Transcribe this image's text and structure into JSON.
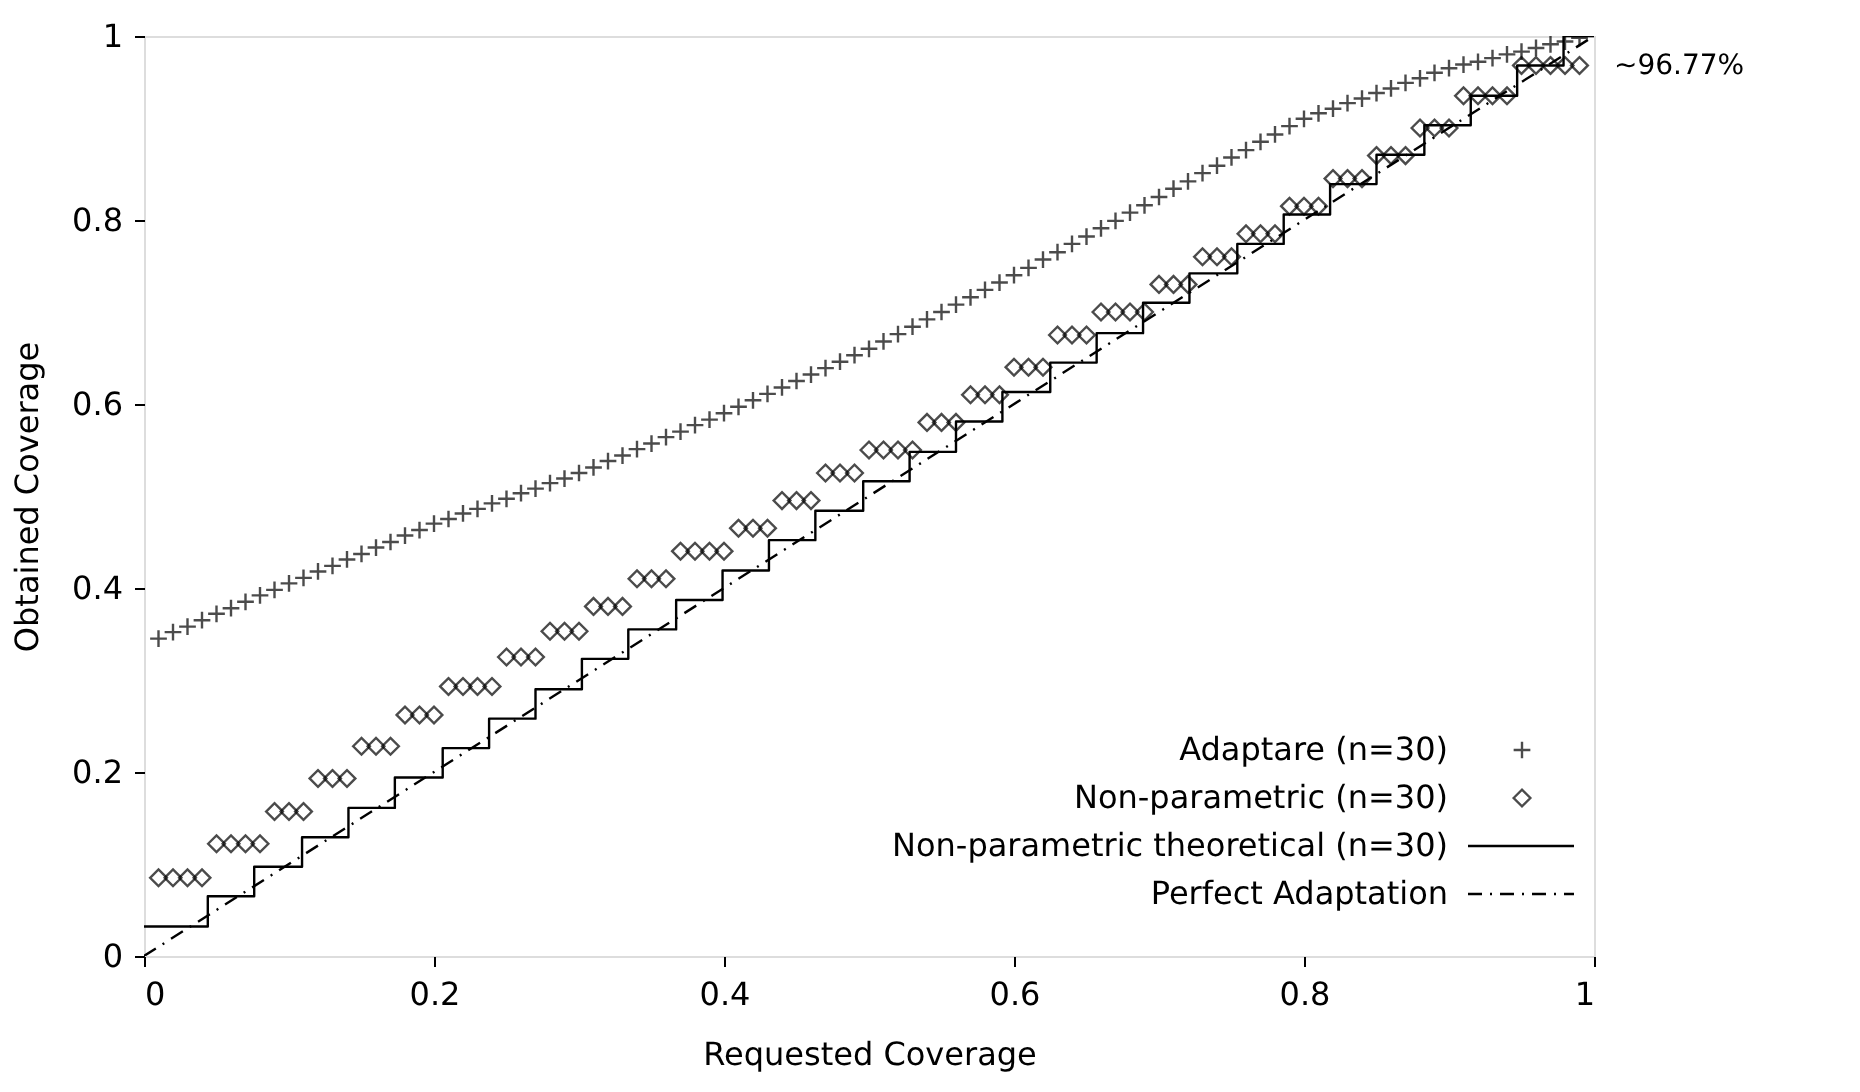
{
  "chart_data": {
    "type": "scatter",
    "xlabel": "Requested Coverage",
    "ylabel": "Obtained Coverage",
    "xlim": [
      0,
      1
    ],
    "ylim": [
      0,
      1
    ],
    "xticks": [
      0,
      0.2,
      0.4,
      0.6,
      0.8,
      1
    ],
    "yticks": [
      0,
      0.2,
      0.4,
      0.6,
      0.8,
      1
    ],
    "grid": false,
    "legend": "bottom right",
    "x": [
      0.01,
      0.02,
      0.03,
      0.04,
      0.05,
      0.06,
      0.07,
      0.08,
      0.09,
      0.1,
      0.11,
      0.12,
      0.13,
      0.14,
      0.15,
      0.16,
      0.17,
      0.18,
      0.19,
      0.2,
      0.21,
      0.22,
      0.23,
      0.24,
      0.25,
      0.26,
      0.27,
      0.28,
      0.29,
      0.3,
      0.31,
      0.32,
      0.33,
      0.34,
      0.35,
      0.36,
      0.37,
      0.38,
      0.39,
      0.4,
      0.41,
      0.42,
      0.43,
      0.44,
      0.45,
      0.46,
      0.47,
      0.48,
      0.49,
      0.5,
      0.51,
      0.52,
      0.53,
      0.54,
      0.55,
      0.56,
      0.57,
      0.58,
      0.59,
      0.6,
      0.61,
      0.62,
      0.63,
      0.64,
      0.65,
      0.66,
      0.67,
      0.68,
      0.69,
      0.7,
      0.71,
      0.72,
      0.73,
      0.74,
      0.75,
      0.76,
      0.77,
      0.78,
      0.79,
      0.8,
      0.81,
      0.82,
      0.83,
      0.84,
      0.85,
      0.86,
      0.87,
      0.88,
      0.89,
      0.9,
      0.91,
      0.92,
      0.93,
      0.94,
      0.95,
      0.96,
      0.97,
      0.98,
      0.99
    ],
    "series": [
      {
        "name": "Adaptare (n=30)",
        "marker": "cross",
        "color": "#000000",
        "values": [
          0.345,
          0.352,
          0.358,
          0.365,
          0.372,
          0.378,
          0.385,
          0.392,
          0.398,
          0.405,
          0.411,
          0.418,
          0.424,
          0.431,
          0.437,
          0.444,
          0.45,
          0.457,
          0.463,
          0.47,
          0.475,
          0.481,
          0.486,
          0.492,
          0.497,
          0.503,
          0.508,
          0.514,
          0.519,
          0.525,
          0.531,
          0.538,
          0.544,
          0.551,
          0.557,
          0.564,
          0.57,
          0.577,
          0.583,
          0.59,
          0.597,
          0.604,
          0.611,
          0.618,
          0.625,
          0.632,
          0.639,
          0.646,
          0.653,
          0.66,
          0.668,
          0.676,
          0.684,
          0.692,
          0.7,
          0.708,
          0.716,
          0.724,
          0.732,
          0.74,
          0.748,
          0.757,
          0.765,
          0.774,
          0.782,
          0.791,
          0.799,
          0.808,
          0.816,
          0.825,
          0.834,
          0.842,
          0.851,
          0.859,
          0.868,
          0.876,
          0.885,
          0.893,
          0.902,
          0.91,
          0.916,
          0.921,
          0.927,
          0.932,
          0.938,
          0.943,
          0.949,
          0.954,
          0.96,
          0.965,
          0.969,
          0.972,
          0.976,
          0.98,
          0.983,
          0.987,
          0.991,
          0.994,
          0.998
        ]
      },
      {
        "name": "Non-parametric (n=30)",
        "marker": "diamond",
        "color": "#000000",
        "values": [
          0.085,
          0.085,
          0.085,
          0.085,
          0.122,
          0.122,
          0.122,
          0.122,
          0.157,
          0.157,
          0.157,
          0.193,
          0.193,
          0.193,
          0.228,
          0.228,
          0.228,
          0.262,
          0.262,
          0.262,
          0.293,
          0.293,
          0.293,
          0.293,
          0.325,
          0.325,
          0.325,
          0.353,
          0.353,
          0.353,
          0.38,
          0.38,
          0.38,
          0.41,
          0.41,
          0.41,
          0.44,
          0.44,
          0.44,
          0.44,
          0.465,
          0.465,
          0.465,
          0.495,
          0.495,
          0.495,
          0.525,
          0.525,
          0.525,
          0.55,
          0.55,
          0.55,
          0.55,
          0.58,
          0.58,
          0.58,
          0.61,
          0.61,
          0.61,
          0.64,
          0.64,
          0.64,
          0.675,
          0.675,
          0.675,
          0.7,
          0.7,
          0.7,
          0.7,
          0.73,
          0.73,
          0.73,
          0.76,
          0.76,
          0.76,
          0.785,
          0.785,
          0.785,
          0.815,
          0.815,
          0.815,
          0.845,
          0.845,
          0.845,
          0.87,
          0.87,
          0.87,
          0.9,
          0.9,
          0.9,
          0.935,
          0.935,
          0.935,
          0.935,
          0.968,
          0.968,
          0.968,
          0.968,
          0.968
        ]
      },
      {
        "name": "Non-parametric theoretical (n=30)",
        "type": "step",
        "marker": "none",
        "line_style": "solid",
        "color": "#000000",
        "x": [
          0,
          0.044,
          0.076,
          0.109,
          0.141,
          0.173,
          0.206,
          0.238,
          0.27,
          0.302,
          0.334,
          0.367,
          0.399,
          0.431,
          0.463,
          0.496,
          0.528,
          0.56,
          0.592,
          0.625,
          0.657,
          0.689,
          0.721,
          0.754,
          0.786,
          0.818,
          0.85,
          0.883,
          0.915,
          0.947,
          0.979,
          1
        ],
        "values": [
          0.032,
          0.065,
          0.097,
          0.129,
          0.161,
          0.194,
          0.226,
          0.258,
          0.29,
          0.323,
          0.355,
          0.387,
          0.419,
          0.452,
          0.484,
          0.516,
          0.548,
          0.581,
          0.613,
          0.645,
          0.677,
          0.71,
          0.742,
          0.774,
          0.806,
          0.839,
          0.871,
          0.903,
          0.935,
          0.968,
          1.0,
          1.0
        ]
      },
      {
        "name": "Perfect Adaptation",
        "type": "line",
        "marker": "none",
        "line_style": "dashdot",
        "color": "#000000",
        "x": [
          0,
          1
        ],
        "values": [
          0,
          1
        ]
      }
    ],
    "annotations": [
      {
        "text": "~96.77%",
        "x": 1,
        "y": 0.9677
      }
    ]
  }
}
